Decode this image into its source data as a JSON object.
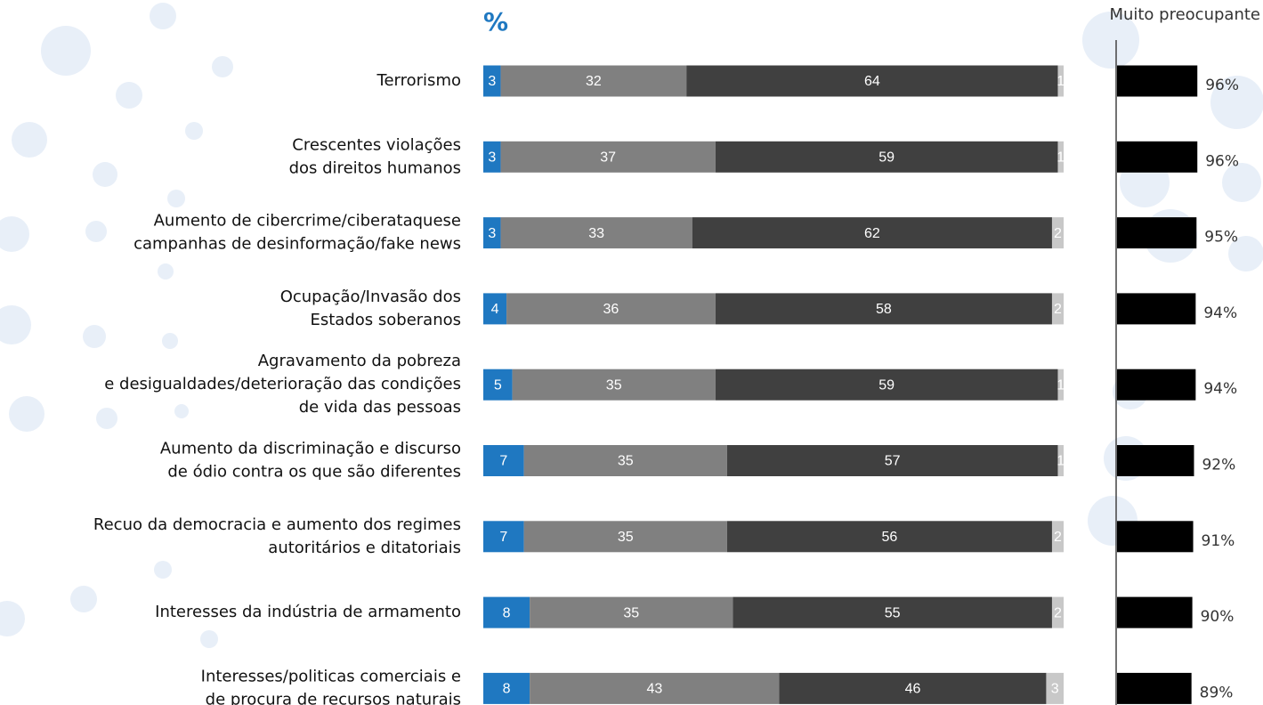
{
  "chart_data": [
    {
      "type": "stacked-bar",
      "title": "%",
      "categories": [
        "Terrorismo",
        "Crescentes violações\ndos direitos humanos",
        "Aumento de cibercrime/ciberataquese\ncampanhas de desinformação/fake news",
        "Ocupação/Invasão dos\nEstados soberanos",
        "Agravamento da pobreza\ne desigualdades/deterioração das condições\nde vida das pessoas",
        "Aumento da discriminação e discurso\nde ódio contra os que são diferentes",
        "Recuo da democracia e aumento dos regimes\nautoritários e ditatoriais",
        "Interesses da indústria de armamento",
        "Interesses/politicas comerciais e\nde procura de recursos naturais"
      ],
      "series": [
        {
          "color": "#1f78c1",
          "values": [
            3,
            3,
            3,
            4,
            5,
            7,
            7,
            8,
            8
          ]
        },
        {
          "color": "#808080",
          "values": [
            32,
            37,
            33,
            36,
            35,
            35,
            35,
            35,
            43
          ]
        },
        {
          "color": "#404040",
          "values": [
            64,
            59,
            62,
            58,
            59,
            57,
            56,
            55,
            46
          ]
        },
        {
          "color": "#c8c8c8",
          "values": [
            1,
            1,
            2,
            2,
            1,
            1,
            2,
            2,
            3
          ]
        }
      ],
      "xlim": [
        0,
        100
      ]
    },
    {
      "type": "bar",
      "title": "Muito preocupante",
      "values": [
        96,
        96,
        95,
        94,
        94,
        92,
        91,
        90,
        89
      ],
      "value_labels": [
        "96%",
        "96%",
        "95%",
        "94%",
        "94%",
        "92%",
        "91%",
        "90%",
        "89%"
      ],
      "color": "#000000",
      "xlim": [
        0,
        100
      ]
    }
  ]
}
